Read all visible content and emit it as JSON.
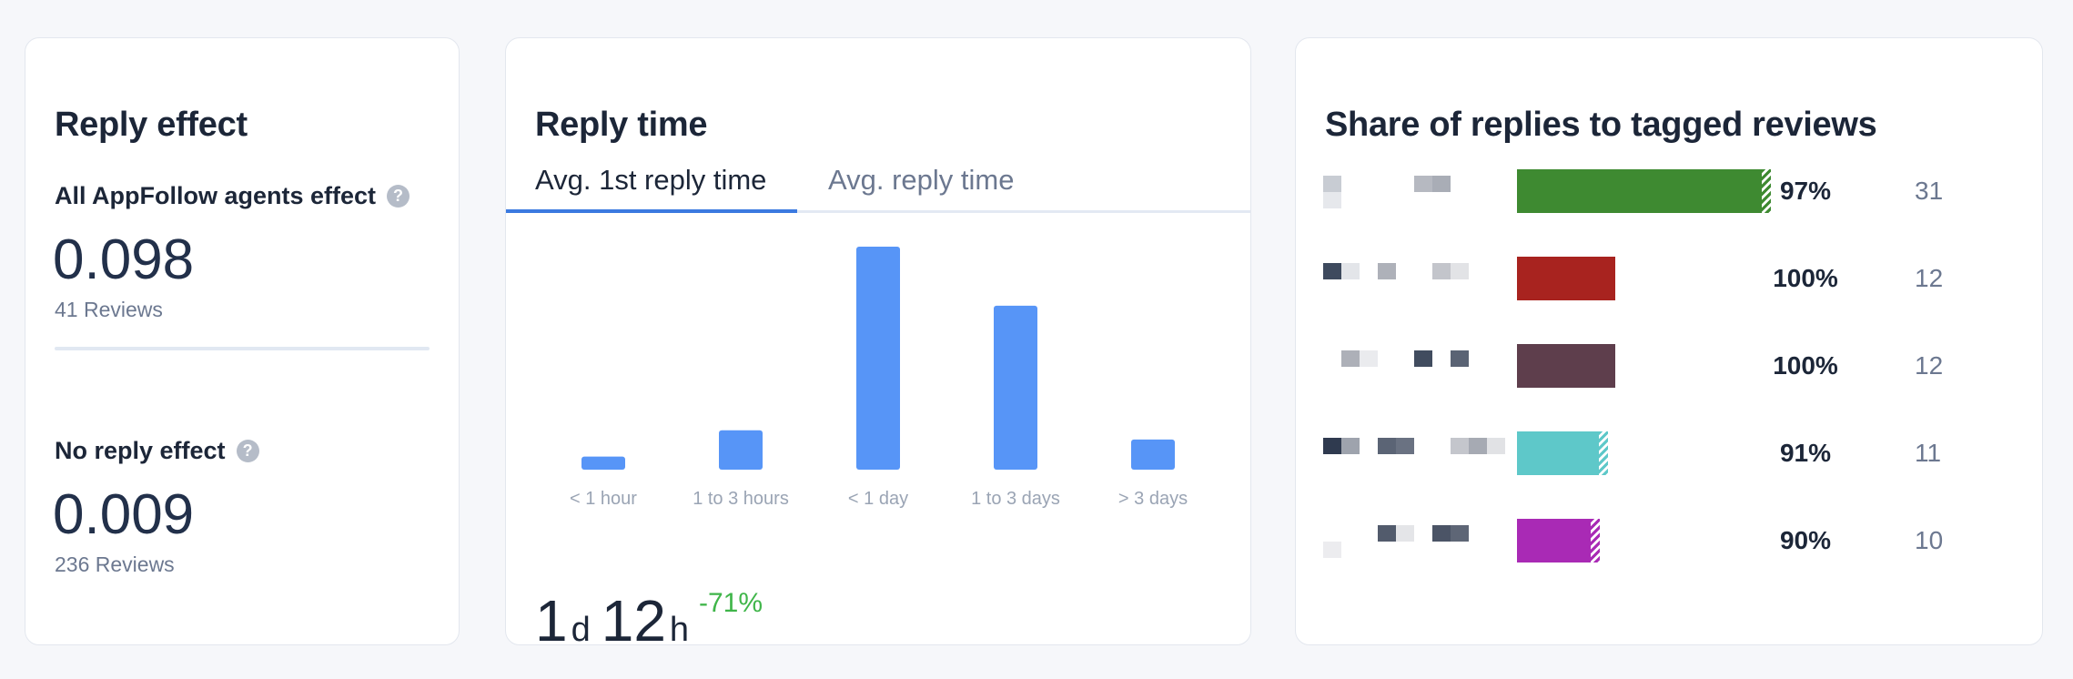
{
  "reply_effect": {
    "title": "Reply effect",
    "agents": {
      "label": "All AppFollow agents effect",
      "help": "?",
      "value": "0.098",
      "reviews": "41 Reviews"
    },
    "no_reply": {
      "label": "No reply effect",
      "help": "?",
      "value": "0.009",
      "reviews": "236 Reviews"
    }
  },
  "reply_time": {
    "title": "Reply time",
    "tabs": [
      {
        "label": "Avg. 1st reply time",
        "active": true
      },
      {
        "label": "Avg. reply time",
        "active": false
      }
    ],
    "duration": {
      "days": "1",
      "days_unit": "d",
      "hours": "12",
      "hours_unit": "h"
    },
    "delta": "-71%",
    "chart_data": {
      "type": "bar",
      "categories": [
        "< 1 hour",
        "1 to 3 hours",
        "< 1 day",
        "1 to 3 days",
        "> 3 days"
      ],
      "values": [
        1,
        3,
        17,
        12.5,
        2.3
      ],
      "color": "#5795f7",
      "grid": false
    }
  },
  "tags": {
    "title": "Share of replies to tagged reviews",
    "rows": [
      {
        "percent": 97,
        "percent_label": "97%",
        "count": "31",
        "color": "#3e8a31"
      },
      {
        "percent": 100,
        "percent_label": "100%",
        "count": "12",
        "color": "#a8231f"
      },
      {
        "percent": 100,
        "percent_label": "100%",
        "count": "12",
        "color": "#5e3e4c"
      },
      {
        "percent": 91,
        "percent_label": "91%",
        "count": "11",
        "color": "#5ec8c9"
      },
      {
        "percent": 90,
        "percent_label": "90%",
        "count": "10",
        "color": "#a92ab5"
      }
    ]
  }
}
